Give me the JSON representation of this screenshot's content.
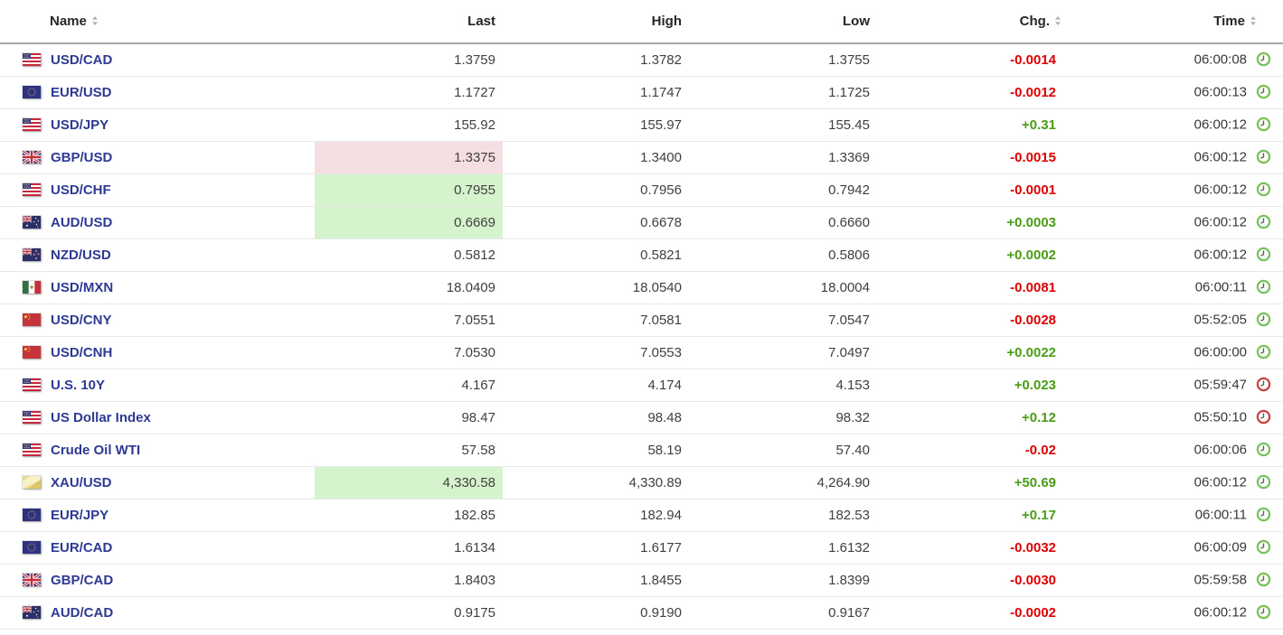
{
  "table": {
    "columns": [
      {
        "label": "Name",
        "sortable": true
      },
      {
        "label": "Last",
        "sortable": false
      },
      {
        "label": "High",
        "sortable": false
      },
      {
        "label": "Low",
        "sortable": false
      },
      {
        "label": "Chg.",
        "sortable": true
      },
      {
        "label": "Time",
        "sortable": true
      }
    ],
    "rows": [
      {
        "flag": "us-flag-icon",
        "name": "USD/CAD",
        "last": "1.3759",
        "high": "1.3782",
        "low": "1.3755",
        "chg": "-0.0014",
        "chg_dir": "down",
        "time": "06:00:08",
        "clock": "green",
        "last_bg": ""
      },
      {
        "flag": "eu-flag-icon",
        "name": "EUR/USD",
        "last": "1.1727",
        "high": "1.1747",
        "low": "1.1725",
        "chg": "-0.0012",
        "chg_dir": "down",
        "time": "06:00:13",
        "clock": "green",
        "last_bg": ""
      },
      {
        "flag": "us-flag-icon",
        "name": "USD/JPY",
        "last": "155.92",
        "high": "155.97",
        "low": "155.45",
        "chg": "+0.31",
        "chg_dir": "up",
        "time": "06:00:12",
        "clock": "green",
        "last_bg": ""
      },
      {
        "flag": "gb-flag-icon",
        "name": "GBP/USD",
        "last": "1.3375",
        "high": "1.3400",
        "low": "1.3369",
        "chg": "-0.0015",
        "chg_dir": "down",
        "time": "06:00:12",
        "clock": "green",
        "last_bg": "pink"
      },
      {
        "flag": "us-flag-icon",
        "name": "USD/CHF",
        "last": "0.7955",
        "high": "0.7956",
        "low": "0.7942",
        "chg": "-0.0001",
        "chg_dir": "down",
        "time": "06:00:12",
        "clock": "green",
        "last_bg": "green"
      },
      {
        "flag": "au-flag-icon",
        "name": "AUD/USD",
        "last": "0.6669",
        "high": "0.6678",
        "low": "0.6660",
        "chg": "+0.0003",
        "chg_dir": "up",
        "time": "06:00:12",
        "clock": "green",
        "last_bg": "green"
      },
      {
        "flag": "nz-flag-icon",
        "name": "NZD/USD",
        "last": "0.5812",
        "high": "0.5821",
        "low": "0.5806",
        "chg": "+0.0002",
        "chg_dir": "up",
        "time": "06:00:12",
        "clock": "green",
        "last_bg": ""
      },
      {
        "flag": "mx-flag-icon",
        "name": "USD/MXN",
        "last": "18.0409",
        "high": "18.0540",
        "low": "18.0004",
        "chg": "-0.0081",
        "chg_dir": "down",
        "time": "06:00:11",
        "clock": "green",
        "last_bg": ""
      },
      {
        "flag": "cn-flag-icon",
        "name": "USD/CNY",
        "last": "7.0551",
        "high": "7.0581",
        "low": "7.0547",
        "chg": "-0.0028",
        "chg_dir": "down",
        "time": "05:52:05",
        "clock": "green",
        "last_bg": ""
      },
      {
        "flag": "cn-flag-icon",
        "name": "USD/CNH",
        "last": "7.0530",
        "high": "7.0553",
        "low": "7.0497",
        "chg": "+0.0022",
        "chg_dir": "up",
        "time": "06:00:00",
        "clock": "green",
        "last_bg": ""
      },
      {
        "flag": "us-flag-icon",
        "name": "U.S. 10Y",
        "last": "4.167",
        "high": "4.174",
        "low": "4.153",
        "chg": "+0.023",
        "chg_dir": "up",
        "time": "05:59:47",
        "clock": "red",
        "last_bg": ""
      },
      {
        "flag": "us-flag-icon",
        "name": "US Dollar Index",
        "last": "98.47",
        "high": "98.48",
        "low": "98.32",
        "chg": "+0.12",
        "chg_dir": "up",
        "time": "05:50:10",
        "clock": "red",
        "last_bg": ""
      },
      {
        "flag": "us-flag-icon",
        "name": "Crude Oil WTI",
        "last": "57.58",
        "high": "58.19",
        "low": "57.40",
        "chg": "-0.02",
        "chg_dir": "down",
        "time": "06:00:06",
        "clock": "green",
        "last_bg": ""
      },
      {
        "flag": "gold-flag-icon",
        "name": "XAU/USD",
        "last": "4,330.58",
        "high": "4,330.89",
        "low": "4,264.90",
        "chg": "+50.69",
        "chg_dir": "up",
        "time": "06:00:12",
        "clock": "green",
        "last_bg": "green"
      },
      {
        "flag": "eu-flag-icon",
        "name": "EUR/JPY",
        "last": "182.85",
        "high": "182.94",
        "low": "182.53",
        "chg": "+0.17",
        "chg_dir": "up",
        "time": "06:00:11",
        "clock": "green",
        "last_bg": ""
      },
      {
        "flag": "eu-flag-icon",
        "name": "EUR/CAD",
        "last": "1.6134",
        "high": "1.6177",
        "low": "1.6132",
        "chg": "-0.0032",
        "chg_dir": "down",
        "time": "06:00:09",
        "clock": "green",
        "last_bg": ""
      },
      {
        "flag": "gb-flag-icon",
        "name": "GBP/CAD",
        "last": "1.8403",
        "high": "1.8455",
        "low": "1.8399",
        "chg": "-0.0030",
        "chg_dir": "down",
        "time": "05:59:58",
        "clock": "green",
        "last_bg": ""
      },
      {
        "flag": "au-flag-icon",
        "name": "AUD/CAD",
        "last": "0.9175",
        "high": "0.9190",
        "low": "0.9167",
        "chg": "-0.0002",
        "chg_dir": "down",
        "time": "06:00:12",
        "clock": "green",
        "last_bg": ""
      }
    ]
  },
  "colors": {
    "positive": "#4A9C15",
    "negative": "#DD0000",
    "name_link": "#2D3A94",
    "highlight_green": "#D5F3CC",
    "highlight_pink": "#F5DEE1",
    "clock_green": "#77C159",
    "clock_red": "#C94040"
  }
}
